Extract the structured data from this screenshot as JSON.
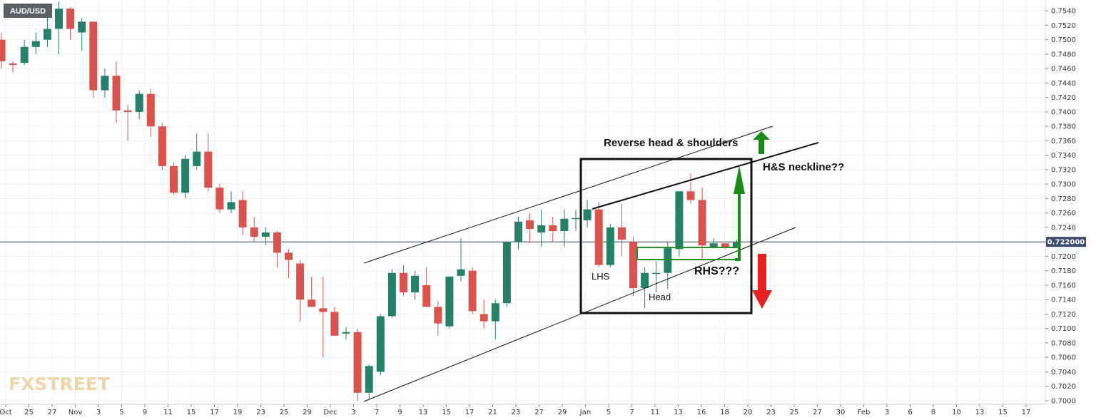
{
  "symbol": "AUD/USD",
  "watermark": "FXSTREET",
  "price_badge": "0.722000",
  "colors": {
    "up": "#26806a",
    "down": "#d9534f",
    "green_arrow": "#1a8c1a",
    "red_arrow": "#e82020"
  },
  "chart_data": {
    "type": "candlestick",
    "ylim": [
      0.6995,
      0.7555
    ],
    "y_ticks": [
      "0.7540",
      "0.7520",
      "0.7500",
      "0.7480",
      "0.7460",
      "0.7440",
      "0.7420",
      "0.7400",
      "0.7380",
      "0.7360",
      "0.7340",
      "0.7320",
      "0.7300",
      "0.7280",
      "0.7260",
      "0.7240",
      "0.7220",
      "0.7200",
      "0.7180",
      "0.7160",
      "0.7140",
      "0.7120",
      "0.7100",
      "0.7080",
      "0.7060",
      "0.7040",
      "0.7020",
      "0.7000"
    ],
    "x_ticks": [
      "Oct",
      "25",
      "27",
      "Nov",
      "3",
      "5",
      "9",
      "11",
      "15",
      "17",
      "19",
      "23",
      "25",
      "29",
      "Dec",
      "3",
      "7",
      "9",
      "13",
      "15",
      "17",
      "21",
      "23",
      "27",
      "29",
      "Jan",
      "5",
      "7",
      "11",
      "13",
      "16",
      "18",
      "20",
      "23",
      "25",
      "27",
      "30",
      "Feb",
      "3",
      "6",
      "8",
      "10",
      "13",
      "15",
      "17"
    ],
    "current_price": 0.722,
    "candles": [
      [
        0.75,
        0.751,
        0.746,
        0.747
      ],
      [
        0.7467,
        0.747,
        0.7455,
        0.7465
      ],
      [
        0.7468,
        0.75,
        0.7465,
        0.749
      ],
      [
        0.749,
        0.751,
        0.748,
        0.7498
      ],
      [
        0.75,
        0.754,
        0.749,
        0.7515
      ],
      [
        0.7515,
        0.7553,
        0.748,
        0.7543
      ],
      [
        0.7543,
        0.7545,
        0.75,
        0.7515
      ],
      [
        0.751,
        0.753,
        0.7485,
        0.7525
      ],
      [
        0.7525,
        0.7525,
        0.742,
        0.743
      ],
      [
        0.743,
        0.746,
        0.742,
        0.745
      ],
      [
        0.745,
        0.747,
        0.7385,
        0.7402
      ],
      [
        0.7402,
        0.741,
        0.736,
        0.74
      ],
      [
        0.74,
        0.743,
        0.739,
        0.7425
      ],
      [
        0.7425,
        0.7432,
        0.7365,
        0.738
      ],
      [
        0.738,
        0.7385,
        0.732,
        0.7325
      ],
      [
        0.7325,
        0.733,
        0.7285,
        0.7288
      ],
      [
        0.7288,
        0.734,
        0.728,
        0.7335
      ],
      [
        0.7325,
        0.737,
        0.732,
        0.7345
      ],
      [
        0.7345,
        0.737,
        0.729,
        0.7295
      ],
      [
        0.7295,
        0.73,
        0.726,
        0.7265
      ],
      [
        0.7265,
        0.729,
        0.726,
        0.7275
      ],
      [
        0.7278,
        0.729,
        0.723,
        0.724
      ],
      [
        0.724,
        0.7255,
        0.722,
        0.7227
      ],
      [
        0.7227,
        0.724,
        0.7215,
        0.7233
      ],
      [
        0.7233,
        0.7235,
        0.7185,
        0.7205
      ],
      [
        0.7205,
        0.721,
        0.717,
        0.7195
      ],
      [
        0.719,
        0.7195,
        0.711,
        0.714
      ],
      [
        0.714,
        0.7172,
        0.713,
        0.713
      ],
      [
        0.7128,
        0.7172,
        0.706,
        0.7123
      ],
      [
        0.7123,
        0.713,
        0.709,
        0.709
      ],
      [
        0.7093,
        0.7102,
        0.7085,
        0.7095
      ],
      [
        0.7095,
        0.71,
        0.7,
        0.7011
      ],
      [
        0.7011,
        0.705,
        0.7003,
        0.7048
      ],
      [
        0.704,
        0.712,
        0.7035,
        0.7117
      ],
      [
        0.7117,
        0.7182,
        0.7115,
        0.7177
      ],
      [
        0.7177,
        0.7188,
        0.7145,
        0.715
      ],
      [
        0.715,
        0.718,
        0.714,
        0.7173
      ],
      [
        0.716,
        0.7185,
        0.713,
        0.713
      ],
      [
        0.713,
        0.7138,
        0.709,
        0.7107
      ],
      [
        0.7103,
        0.7172,
        0.71,
        0.7172
      ],
      [
        0.7173,
        0.7225,
        0.7165,
        0.7182
      ],
      [
        0.718,
        0.7185,
        0.712,
        0.7124
      ],
      [
        0.712,
        0.714,
        0.71,
        0.711
      ],
      [
        0.711,
        0.714,
        0.7085,
        0.7135
      ],
      [
        0.7135,
        0.722,
        0.713,
        0.722
      ],
      [
        0.722,
        0.7255,
        0.721,
        0.7248
      ],
      [
        0.725,
        0.726,
        0.7218,
        0.7238
      ],
      [
        0.7233,
        0.7265,
        0.7213,
        0.7243
      ],
      [
        0.7243,
        0.7255,
        0.722,
        0.7235
      ],
      [
        0.7235,
        0.7265,
        0.7213,
        0.7252
      ],
      [
        0.7253,
        0.7265,
        0.7235,
        0.7253
      ],
      [
        0.725,
        0.7278,
        0.724,
        0.7265
      ],
      [
        0.7265,
        0.7275,
        0.7185,
        0.7188
      ],
      [
        0.7188,
        0.7245,
        0.7185,
        0.724
      ],
      [
        0.724,
        0.7273,
        0.72,
        0.7223
      ],
      [
        0.722,
        0.7227,
        0.7145,
        0.7156
      ],
      [
        0.7156,
        0.7185,
        0.7128,
        0.7177
      ],
      [
        0.7177,
        0.7193,
        0.715,
        0.7177
      ],
      [
        0.7177,
        0.722,
        0.7155,
        0.7212
      ],
      [
        0.721,
        0.729,
        0.72,
        0.729
      ],
      [
        0.729,
        0.7315,
        0.7273,
        0.7278
      ],
      [
        0.7278,
        0.7295,
        0.7195,
        0.7215
      ],
      [
        0.7212,
        0.7225,
        0.7212,
        0.7218
      ],
      [
        0.7218,
        0.7218,
        0.721,
        0.7213
      ],
      [
        0.7213,
        0.7223,
        0.7212,
        0.722
      ]
    ],
    "annotations": {
      "title": "Reverse head & shoulders",
      "neckline": "H&S neckline??",
      "lhs": "LHS",
      "head": "Head",
      "rhs": "RHS???"
    }
  }
}
